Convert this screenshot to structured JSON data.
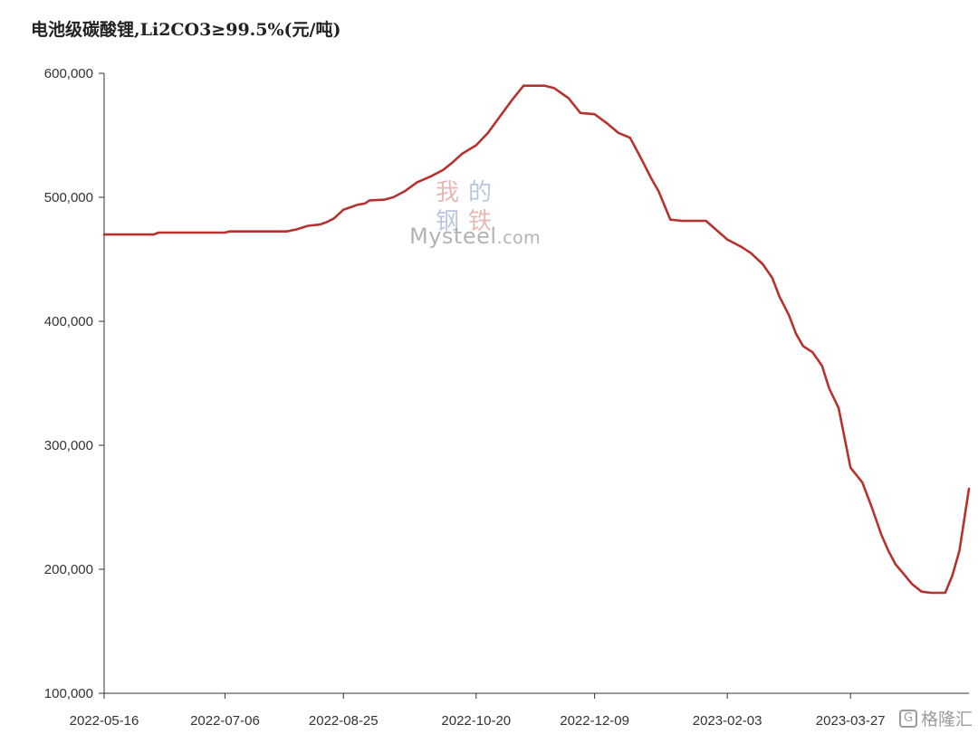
{
  "chart_data": {
    "type": "line",
    "title": "电池级碳酸锂,Li2CO3≥99.5%(元/吨)",
    "xlabel": "",
    "ylabel": "",
    "ylim": [
      100000,
      600000
    ],
    "yticks": [
      "100,000",
      "200,000",
      "300,000",
      "400,000",
      "500,000",
      "600,000"
    ],
    "ytick_values": [
      100000,
      200000,
      300000,
      400000,
      500000,
      600000
    ],
    "xlim": [
      "2022-05-16",
      "2023-05-16"
    ],
    "xticks": [
      "2022-05-16",
      "2022-07-06",
      "2022-08-25",
      "2022-10-20",
      "2022-12-09",
      "2023-02-03",
      "2023-03-27"
    ],
    "grid": false,
    "line_color": "#b5322f",
    "series": [
      {
        "name": "",
        "x": [
          "2022-05-16",
          "2022-06-06",
          "2022-06-08",
          "2022-07-06",
          "2022-07-08",
          "2022-08-01",
          "2022-08-05",
          "2022-08-10",
          "2022-08-15",
          "2022-08-18",
          "2022-08-21",
          "2022-08-25",
          "2022-08-28",
          "2022-08-31",
          "2022-09-03",
          "2022-09-05",
          "2022-09-11",
          "2022-09-15",
          "2022-09-20",
          "2022-09-25",
          "2022-10-01",
          "2022-10-06",
          "2022-10-10",
          "2022-10-14",
          "2022-10-20",
          "2022-10-25",
          "2022-10-30",
          "2022-11-04",
          "2022-11-09",
          "2022-11-14",
          "2022-11-18",
          "2022-11-22",
          "2022-11-28",
          "2022-12-03",
          "2022-12-09",
          "2022-12-14",
          "2022-12-19",
          "2022-12-24",
          "2022-12-29",
          "2023-01-02",
          "2023-01-05",
          "2023-01-10",
          "2023-01-15",
          "2023-01-20",
          "2023-01-25",
          "2023-02-03",
          "2023-02-09",
          "2023-02-13",
          "2023-02-18",
          "2023-02-22",
          "2023-02-25",
          "2023-03-01",
          "2023-03-04",
          "2023-03-07",
          "2023-03-11",
          "2023-03-15",
          "2023-03-18",
          "2023-03-22",
          "2023-03-27",
          "2023-04-01",
          "2023-04-05",
          "2023-04-09",
          "2023-04-12",
          "2023-04-15",
          "2023-04-19",
          "2023-04-22",
          "2023-04-26",
          "2023-04-30",
          "2023-05-03",
          "2023-05-06",
          "2023-05-09",
          "2023-05-12",
          "2023-05-16"
        ],
        "values": [
          470000,
          470000,
          471500,
          471500,
          472500,
          472500,
          474000,
          477000,
          478000,
          480000,
          483000,
          490000,
          492000,
          494000,
          495000,
          497500,
          498000,
          500000,
          505000,
          512000,
          517000,
          522000,
          528000,
          535000,
          542000,
          552000,
          565000,
          578000,
          590000,
          590000,
          590000,
          588000,
          580000,
          568000,
          567000,
          560000,
          552000,
          548000,
          530000,
          515000,
          505000,
          482000,
          481000,
          481000,
          481000,
          466000,
          460000,
          455000,
          446000,
          435000,
          420000,
          405000,
          390000,
          380000,
          375000,
          364000,
          346000,
          330000,
          282000,
          270000,
          250000,
          228000,
          215000,
          204000,
          195000,
          188000,
          182000,
          181000,
          181000,
          181000,
          195000,
          215000,
          265000
        ]
      }
    ]
  },
  "watermark": {
    "chars": [
      "我",
      "的",
      "钢",
      "铁"
    ],
    "text_main": "Mysteel",
    "text_dot": ".com"
  },
  "logo": {
    "icon": "G",
    "text": "格隆汇"
  }
}
